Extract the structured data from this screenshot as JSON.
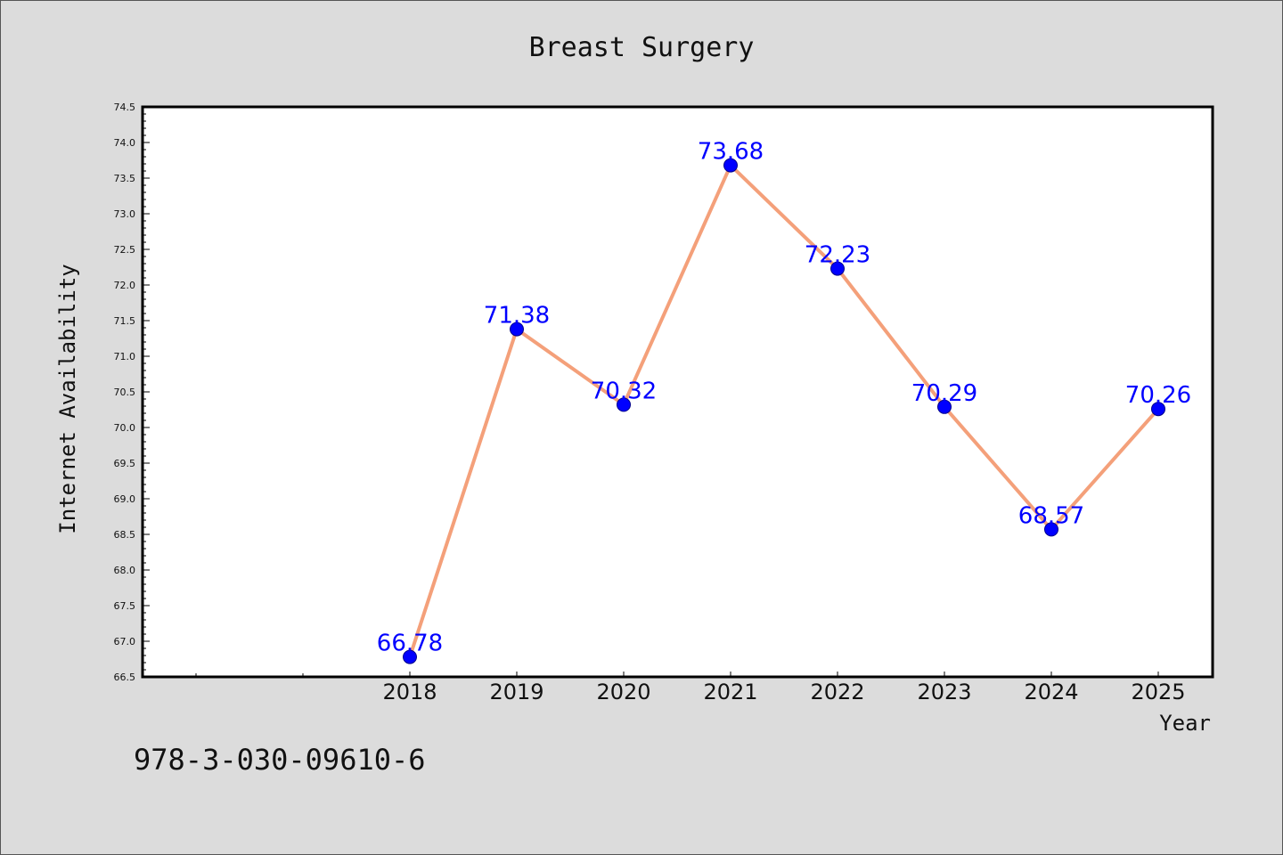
{
  "chart_data": {
    "type": "line",
    "title": "Breast Surgery",
    "xlabel": "Year",
    "ylabel": "Internet Availability",
    "categories": [
      "2018",
      "2019",
      "2020",
      "2021",
      "2022",
      "2023",
      "2024",
      "2025"
    ],
    "series": [
      {
        "values": [
          66.78,
          71.38,
          70.32,
          73.68,
          72.23,
          70.29,
          68.57,
          70.26
        ],
        "labels": [
          "66.78",
          "71.38",
          "70.32",
          "73.68",
          "72.23",
          "70.29",
          "68.57",
          "70.26"
        ],
        "line_color": "#f4a07a",
        "marker_color": "#0000ff"
      }
    ],
    "ylim": [
      66.5,
      74.5
    ],
    "yticks": [
      "66.5",
      "67.0",
      "67.5",
      "68.0",
      "68.5",
      "69.0",
      "69.5",
      "70.0",
      "70.5",
      "71.0",
      "71.5",
      "72.0",
      "72.5",
      "73.0",
      "73.5",
      "74.0",
      "74.5"
    ],
    "grid": false,
    "legend": "none"
  },
  "footer": {
    "text": "978-3-030-09610-6"
  },
  "colors": {
    "background": "#dcdcdc",
    "plot_background": "#ffffff",
    "data_label": "#0000ff"
  }
}
